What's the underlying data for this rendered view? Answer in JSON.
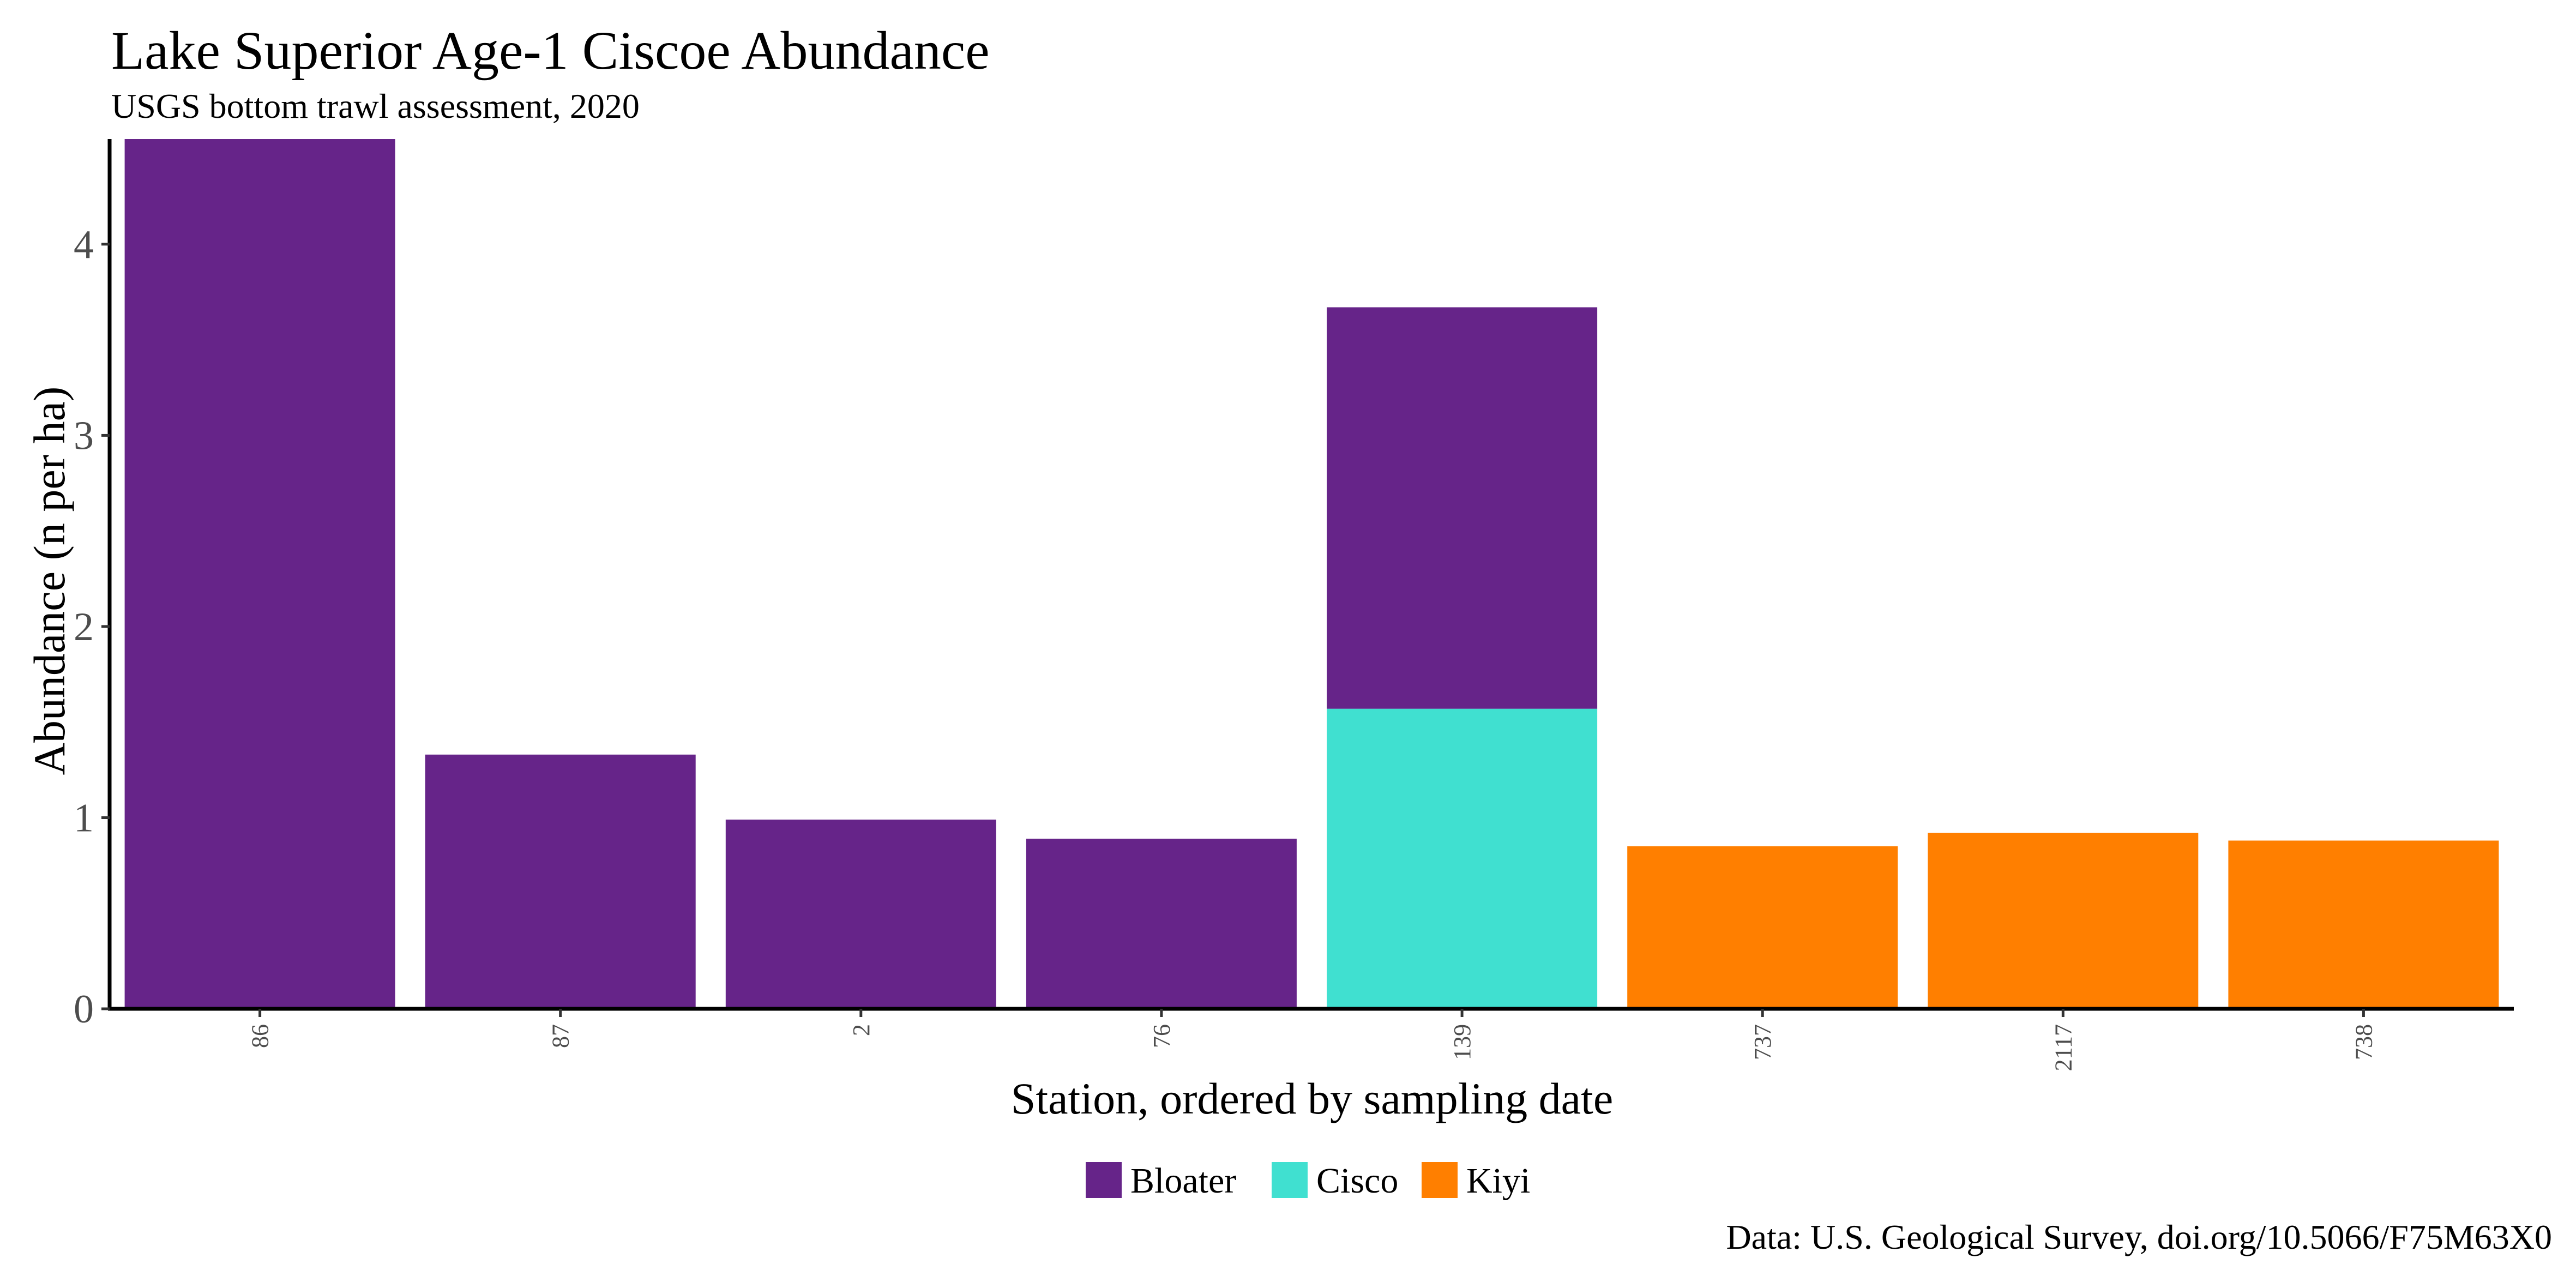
{
  "chart_data": {
    "type": "bar",
    "stacked": true,
    "title": "Lake Superior Age-1 Ciscoe Abundance",
    "subtitle": "USGS bottom trawl assessment,  2020",
    "xlabel": "Station, ordered by sampling date",
    "ylabel": "Abundance (n per ha)",
    "caption": "Data: U.S. Geological Survey, doi.org/10.5066/F75M63X0",
    "categories": [
      "86",
      "87",
      "2",
      "76",
      "139",
      "737",
      "2117",
      "738"
    ],
    "ylim": [
      0,
      4.55
    ],
    "yticks": [
      "0",
      "1",
      "2",
      "3",
      "4"
    ],
    "series": [
      {
        "name": "Bloater",
        "color": "#662489",
        "values": [
          4.55,
          1.33,
          0.99,
          0.89,
          2.1,
          0,
          0,
          0
        ]
      },
      {
        "name": "Cisco",
        "color": "#40E0D0",
        "values": [
          0,
          0,
          0,
          0,
          1.57,
          0,
          0,
          0
        ]
      },
      {
        "name": "Kiyi",
        "color": "#FF7F00",
        "values": [
          0,
          0,
          0,
          0,
          0,
          0.85,
          0.92,
          0.88
        ]
      }
    ],
    "stack_order": [
      "Cisco",
      "Bloater",
      "Kiyi"
    ],
    "legend_position": "bottom",
    "grid": false
  }
}
